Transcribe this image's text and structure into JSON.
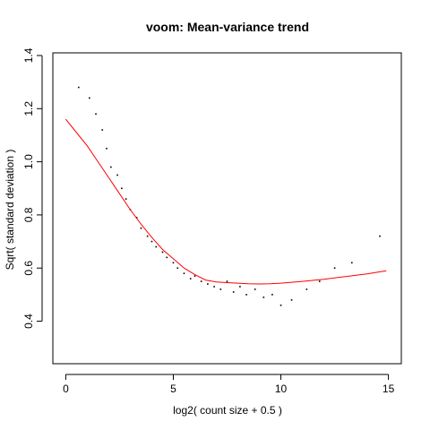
{
  "chart_data": {
    "type": "scatter",
    "title": "voom: Mean-variance trend",
    "xlabel": "log2( count size + 0.5 )",
    "ylabel": "Sqrt( standard deviation )",
    "xlim": [
      -0.6,
      15.6
    ],
    "ylim": [
      0.24,
      1.41
    ],
    "x_ticks": [
      0,
      5,
      10,
      15
    ],
    "y_ticks": [
      0.4,
      0.6,
      0.8,
      1.0,
      1.2,
      1.4
    ],
    "x_tick_labels": [
      "0",
      "5",
      "10",
      "15"
    ],
    "y_tick_labels": [
      "0.4",
      "0.6",
      "0.8",
      "1.0",
      "1.2",
      "1.4"
    ],
    "grid": false,
    "legend": "none",
    "point_color": "#000000",
    "trend_color": "#ff0000",
    "series": [
      {
        "kind": "trend-line",
        "x": [
          0.0,
          0.5,
          1.0,
          1.5,
          2.0,
          2.5,
          3.0,
          3.5,
          4.0,
          4.5,
          5.0,
          5.5,
          6.0,
          6.5,
          7.0,
          7.5,
          8.0,
          8.5,
          9.0,
          9.5,
          10.0,
          11.0,
          12.0,
          13.0,
          14.0,
          14.9
        ],
        "y": [
          1.16,
          1.11,
          1.06,
          1.0,
          0.94,
          0.88,
          0.82,
          0.765,
          0.715,
          0.67,
          0.635,
          0.6,
          0.575,
          0.555,
          0.548,
          0.545,
          0.543,
          0.541,
          0.54,
          0.541,
          0.543,
          0.55,
          0.558,
          0.568,
          0.578,
          0.59
        ]
      },
      {
        "kind": "genes",
        "x": [
          0.6,
          1.1,
          1.4,
          1.7,
          1.9,
          2.1,
          2.4,
          2.6,
          2.8,
          3.0,
          3.3,
          3.5,
          3.8,
          4.0,
          4.2,
          4.5,
          4.7,
          5.0,
          5.2,
          5.5,
          5.8,
          6.0,
          6.3,
          6.6,
          6.9,
          7.2,
          7.5,
          7.8,
          8.1,
          8.4,
          8.8,
          9.2,
          9.6,
          10.0,
          10.5,
          11.2,
          11.8,
          12.5,
          13.3,
          14.6
        ],
        "y": [
          1.28,
          1.24,
          1.18,
          1.12,
          1.05,
          0.98,
          0.95,
          0.9,
          0.86,
          0.82,
          0.79,
          0.75,
          0.72,
          0.7,
          0.68,
          0.66,
          0.64,
          0.62,
          0.6,
          0.58,
          0.56,
          0.57,
          0.55,
          0.54,
          0.53,
          0.52,
          0.55,
          0.51,
          0.53,
          0.5,
          0.52,
          0.49,
          0.5,
          0.46,
          0.48,
          0.52,
          0.55,
          0.6,
          0.62,
          0.72
        ]
      }
    ]
  }
}
